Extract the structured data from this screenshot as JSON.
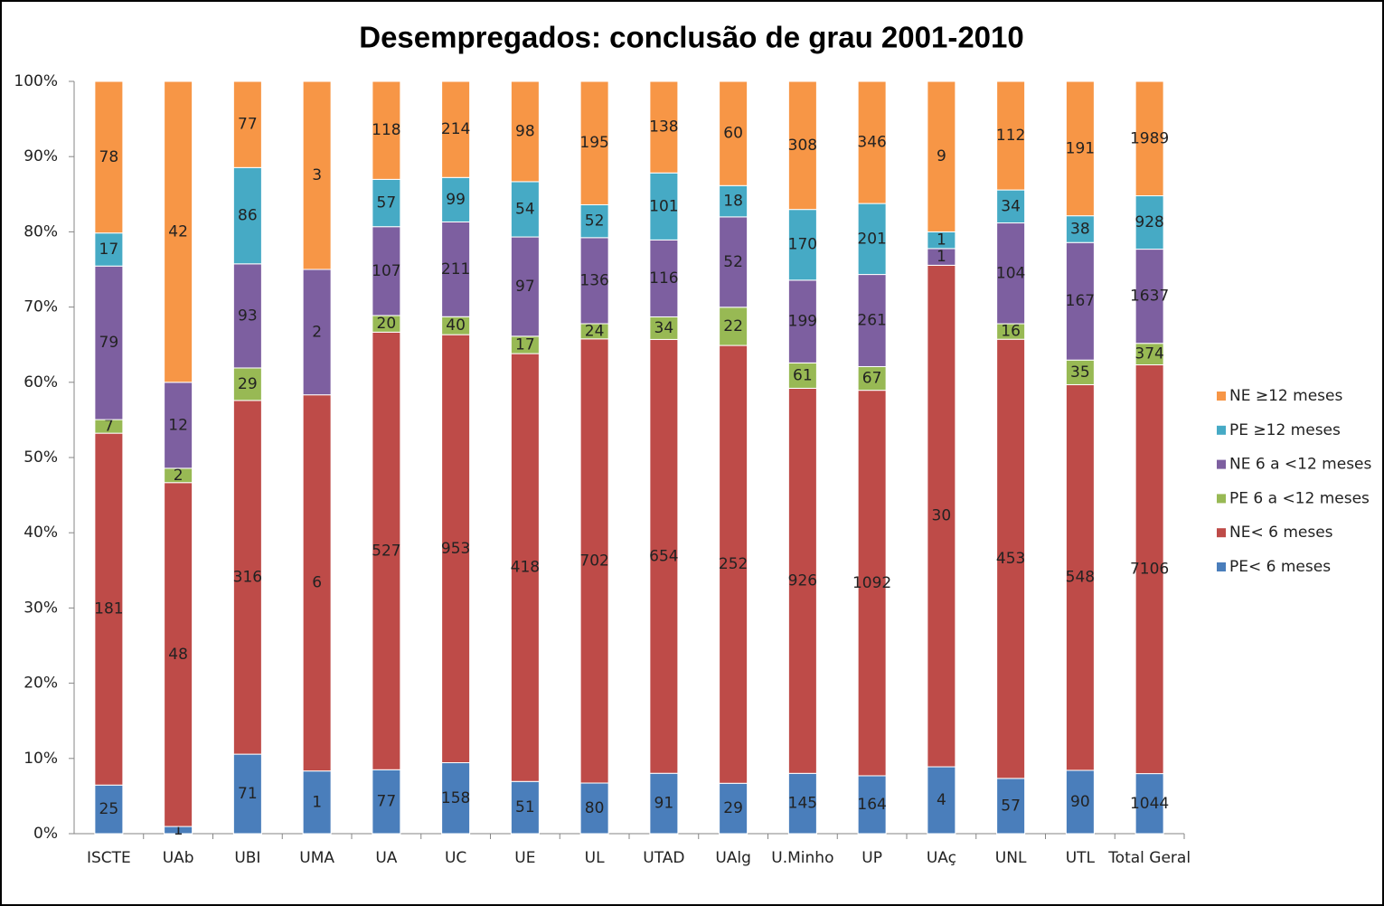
{
  "chart_data": {
    "type": "bar",
    "stacked": "percent",
    "title": "Desempregados: conclusão de grau 2001-2010",
    "categories": [
      "ISCTE",
      "UAb",
      "UBI",
      "UMA",
      "UA",
      "UC",
      "UE",
      "UL",
      "UTAD",
      "UAlg",
      "U.Minho",
      "UP",
      "UAç",
      "UNL",
      "UTL",
      "Total Geral"
    ],
    "series": [
      {
        "name": "PE< 6 meses",
        "color": "#4a7ebb",
        "values": [
          25,
          1,
          71,
          1,
          77,
          158,
          51,
          80,
          91,
          29,
          145,
          164,
          4,
          57,
          90,
          1044
        ]
      },
      {
        "name": "NE< 6 meses",
        "color": "#be4b48",
        "values": [
          181,
          48,
          316,
          6,
          527,
          953,
          418,
          702,
          654,
          252,
          926,
          1092,
          30,
          453,
          548,
          7106
        ]
      },
      {
        "name": "PE 6 a <12 meses",
        "color": "#98b954",
        "values": [
          7,
          2,
          29,
          null,
          20,
          40,
          17,
          24,
          34,
          22,
          61,
          67,
          null,
          16,
          35,
          374
        ]
      },
      {
        "name": "NE 6 a <12 meses",
        "color": "#7d5fa0",
        "values": [
          79,
          12,
          93,
          2,
          107,
          211,
          97,
          136,
          116,
          52,
          199,
          261,
          1,
          104,
          167,
          1637
        ]
      },
      {
        "name": "PE ≥12 meses",
        "color": "#46aac5",
        "values": [
          17,
          null,
          86,
          null,
          57,
          99,
          54,
          52,
          101,
          18,
          170,
          201,
          1,
          34,
          38,
          928
        ]
      },
      {
        "name": "NE ≥12 meses",
        "color": "#f79646",
        "values": [
          78,
          42,
          77,
          3,
          118,
          214,
          98,
          195,
          138,
          60,
          308,
          346,
          9,
          112,
          191,
          1989
        ]
      }
    ],
    "ylim": [
      0,
      100
    ],
    "yticks": [
      {
        "value": 0,
        "label": "0%"
      },
      {
        "value": 10,
        "label": "10%"
      },
      {
        "value": 20,
        "label": "20%"
      },
      {
        "value": 30,
        "label": "30%"
      },
      {
        "value": 40,
        "label": "40%"
      },
      {
        "value": 50,
        "label": "50%"
      },
      {
        "value": 60,
        "label": "60%"
      },
      {
        "value": 70,
        "label": "70%"
      },
      {
        "value": 80,
        "label": "80%"
      },
      {
        "value": 90,
        "label": "90%"
      },
      {
        "value": 100,
        "label": "100%"
      }
    ],
    "legend": "right"
  }
}
